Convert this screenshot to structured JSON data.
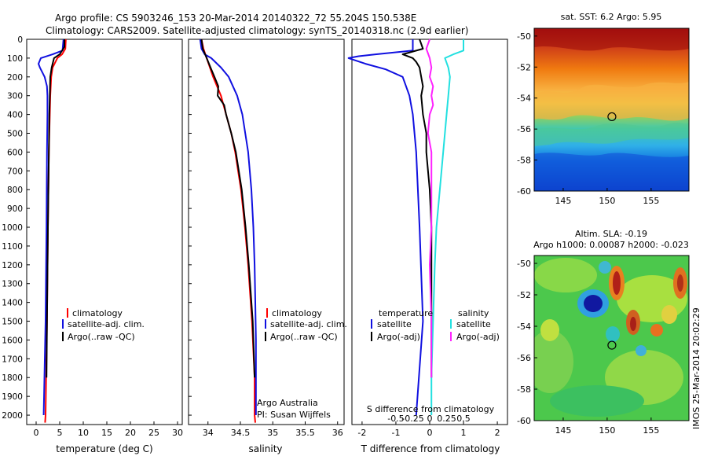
{
  "header": {
    "line1": "Argo profile: CS 5903246_153 20-Mar-2014 20140322_72 55.204S 150.538E",
    "line2": "Climatology: CARS2009. Satellite-adjusted climatology: synTS_20140318.nc (2.9d earlier)"
  },
  "colors": {
    "climatology": "#ff0000",
    "satellite": "#1010e0",
    "argo": "#000000",
    "satellite_salinity": "#22e0e0",
    "argo_salinity": "#ff22ff"
  },
  "depth_ticks": [
    "0",
    "100",
    "200",
    "300",
    "400",
    "500",
    "600",
    "700",
    "800",
    "900",
    "1000",
    "1100",
    "1200",
    "1300",
    "1400",
    "1500",
    "1600",
    "1700",
    "1800",
    "1900",
    "2000"
  ],
  "chart_data": [
    {
      "type": "line",
      "name": "temperature-profile",
      "xlabel": "temperature (deg C)",
      "xlim": [
        -2,
        31
      ],
      "ylim": [
        2050,
        0
      ],
      "xticks": [
        "0",
        "5",
        "10",
        "15",
        "20",
        "25",
        "30"
      ],
      "legend": [
        "climatology",
        "satellite-adj. clim.",
        "Argo(..raw -QC)"
      ],
      "series": [
        {
          "name": "climatology",
          "depth": [
            0,
            50,
            80,
            100,
            150,
            200,
            300,
            400,
            600,
            800,
            1000,
            1500,
            2000,
            2040
          ],
          "values": [
            6.3,
            6.2,
            5.5,
            4.5,
            3.5,
            3.2,
            3.0,
            2.9,
            2.7,
            2.6,
            2.5,
            2.3,
            2.0,
            1.9
          ]
        },
        {
          "name": "satellite-adj. clim.",
          "depth": [
            0,
            60,
            80,
            100,
            130,
            150,
            200,
            250,
            300,
            400,
            600,
            1000,
            1500,
            2000
          ],
          "values": [
            5.8,
            5.6,
            3.5,
            1.0,
            0.5,
            0.8,
            1.8,
            2.3,
            2.4,
            2.4,
            2.3,
            2.2,
            2.0,
            1.6
          ]
        },
        {
          "name": "Argo(..raw -QC)",
          "depth": [
            0,
            40,
            80,
            100,
            150,
            200,
            300,
            400,
            600,
            800,
            1000,
            1500,
            1800
          ],
          "values": [
            6.0,
            6.0,
            5.0,
            3.8,
            3.3,
            3.0,
            2.9,
            2.8,
            2.7,
            2.6,
            2.5,
            2.3,
            2.2
          ]
        }
      ]
    },
    {
      "type": "line",
      "name": "salinity-profile",
      "xlabel": "salinity",
      "xlim": [
        33.7,
        36.1
      ],
      "ylim": [
        2050,
        0
      ],
      "xticks": [
        "34",
        "34.5",
        "35",
        "35.5",
        "36"
      ],
      "legend": [
        "climatology",
        "satellite-adj. clim.",
        "Argo(..raw -QC)"
      ],
      "annotation": [
        "Argo Australia",
        "PI: Susan Wijffels"
      ],
      "series": [
        {
          "name": "climatology",
          "depth": [
            0,
            50,
            100,
            200,
            300,
            400,
            500,
            600,
            800,
            1000,
            1200,
            1500,
            1800,
            2000,
            2040
          ],
          "values": [
            33.9,
            33.93,
            33.98,
            34.08,
            34.2,
            34.28,
            34.36,
            34.42,
            34.51,
            34.57,
            34.62,
            34.68,
            34.72,
            34.72,
            34.73
          ]
        },
        {
          "name": "satellite-adj. clim.",
          "depth": [
            0,
            50,
            80,
            100,
            150,
            200,
            300,
            400,
            600,
            800,
            1000,
            1200,
            1400,
            1600,
            1800,
            2000
          ],
          "values": [
            33.88,
            33.9,
            33.95,
            34.05,
            34.2,
            34.32,
            34.45,
            34.53,
            34.62,
            34.67,
            34.7,
            34.72,
            34.73,
            34.74,
            34.74,
            34.74
          ]
        },
        {
          "name": "Argo(..raw -QC)",
          "depth": [
            0,
            50,
            100,
            150,
            200,
            250,
            300,
            350,
            400,
            500,
            600,
            800,
            1000,
            1200,
            1500,
            1800
          ],
          "values": [
            33.9,
            33.92,
            33.98,
            34.04,
            34.1,
            34.16,
            34.15,
            34.25,
            34.28,
            34.36,
            34.43,
            34.52,
            34.58,
            34.63,
            34.69,
            34.72
          ]
        }
      ]
    },
    {
      "type": "line",
      "name": "difference-profile",
      "xlabel": "T difference from climatology",
      "xlabel_top": "S difference from climatology",
      "xlim": [
        -2.3,
        2.3
      ],
      "ylim": [
        2050,
        0
      ],
      "xticks": [
        "-2",
        "-1",
        "0",
        "1",
        "2"
      ],
      "xticks_top": [
        "-0.5",
        "-0.25",
        "0",
        "0.25",
        "0.5"
      ],
      "legend_temperature": {
        "title": "temperature",
        "items": [
          "satellite",
          "Argo(-adj)"
        ]
      },
      "legend_salinity": {
        "title": "salinity",
        "items": [
          "satellite",
          "Argo(-adj)"
        ]
      },
      "series": [
        {
          "name": "temperature satellite",
          "depth": [
            0,
            60,
            80,
            90,
            100,
            130,
            160,
            200,
            300,
            400,
            600,
            1000,
            1500,
            2000
          ],
          "values": [
            -0.5,
            -0.5,
            -1.6,
            -2.1,
            -2.4,
            -1.9,
            -1.3,
            -0.8,
            -0.6,
            -0.5,
            -0.4,
            -0.3,
            -0.2,
            -0.4
          ]
        },
        {
          "name": "temperature Argo(-adj)",
          "depth": [
            0,
            50,
            80,
            100,
            120,
            150,
            200,
            250,
            300,
            400,
            500,
            600,
            800,
            1000,
            1200,
            1500,
            1800
          ],
          "values": [
            -0.3,
            -0.2,
            -0.8,
            -0.5,
            -0.4,
            -0.3,
            -0.25,
            -0.2,
            -0.25,
            -0.2,
            -0.1,
            -0.1,
            0.0,
            0.05,
            0.05,
            0.05,
            0.05
          ]
        },
        {
          "name": "salinity satellite",
          "depth": [
            0,
            60,
            80,
            100,
            150,
            200,
            300,
            400,
            600,
            800,
            1000,
            1200,
            1500,
            1800,
            2000
          ],
          "values": [
            1.0,
            1.0,
            0.7,
            0.45,
            0.55,
            0.6,
            0.55,
            0.5,
            0.4,
            0.3,
            0.2,
            0.15,
            0.1,
            0.05,
            0.05
          ]
        },
        {
          "name": "salinity Argo(-adj)",
          "depth": [
            0,
            50,
            100,
            150,
            200,
            250,
            300,
            350,
            400,
            500,
            600,
            800,
            1000,
            1200,
            1500,
            1800
          ],
          "values": [
            0.0,
            -0.1,
            0.0,
            0.05,
            0.0,
            0.1,
            0.05,
            0.1,
            0.0,
            -0.05,
            0.05,
            0.05,
            0.05,
            0.0,
            0.05,
            0.05
          ]
        }
      ]
    },
    {
      "type": "heatmap",
      "name": "sst-map",
      "title": "sat. SST: 6.2 Argo: 5.95",
      "xlim": [
        141.7,
        159.3
      ],
      "ylim": [
        -60,
        -49.5
      ],
      "xticks": [
        "145",
        "150",
        "155"
      ],
      "yticks": [
        "-50",
        "-52",
        "-54",
        "-56",
        "-58",
        "-60"
      ],
      "marker": {
        "lon": 150.538,
        "lat": -55.204
      }
    },
    {
      "type": "heatmap",
      "name": "sla-map",
      "title": "Altim. SLA: -0.19",
      "subtitle": "Argo h1000: 0.00087 h2000: -0.023",
      "xlim": [
        141.7,
        159.3
      ],
      "ylim": [
        -60,
        -49.5
      ],
      "xticks": [
        "145",
        "150",
        "155"
      ],
      "yticks": [
        "-50",
        "-52",
        "-54",
        "-56",
        "-58",
        "-60"
      ],
      "marker": {
        "lon": 150.538,
        "lat": -55.204
      }
    }
  ],
  "side_label": "IMOS 25-Mar-2014 20:02:29"
}
